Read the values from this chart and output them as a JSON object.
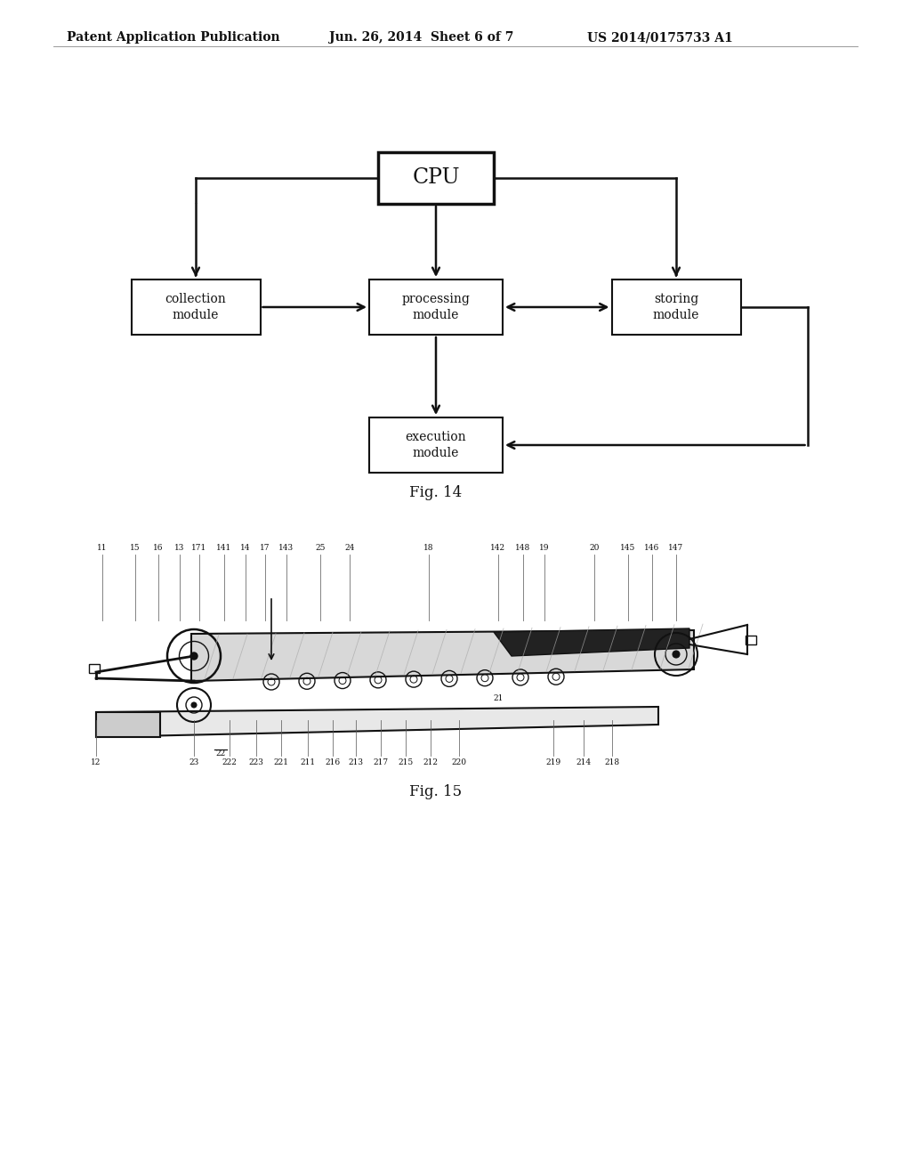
{
  "bg_color": "#ffffff",
  "header_left": "Patent Application Publication",
  "header_mid": "Jun. 26, 2014  Sheet 6 of 7",
  "header_right": "US 2014/0175733 A1",
  "fig14_caption": "Fig. 14",
  "fig15_caption": "Fig. 15",
  "cpu_label": "CPU",
  "collection_label": "collection\nmodule",
  "processing_label": "processing\nmodule",
  "storing_label": "storing\nmodule",
  "execution_label": "execution\nmodule",
  "top_labels": [
    [
      "11",
      115,
      700
    ],
    [
      "15",
      152,
      700
    ],
    [
      "16",
      178,
      700
    ],
    [
      "13",
      202,
      700
    ],
    [
      "171",
      224,
      700
    ],
    [
      "141",
      252,
      700
    ],
    [
      "14",
      276,
      700
    ],
    [
      "17",
      298,
      700
    ],
    [
      "143",
      322,
      700
    ],
    [
      "25",
      360,
      700
    ],
    [
      "24",
      393,
      700
    ],
    [
      "18",
      482,
      700
    ],
    [
      "142",
      560,
      700
    ],
    [
      "148",
      588,
      700
    ],
    [
      "19",
      612,
      700
    ],
    [
      "20",
      668,
      700
    ],
    [
      "145",
      706,
      700
    ],
    [
      "146",
      733,
      700
    ],
    [
      "147",
      760,
      700
    ]
  ],
  "bot_labels": [
    [
      "12",
      108,
      468
    ],
    [
      "23",
      218,
      468
    ],
    [
      "222",
      258,
      468
    ],
    [
      "223",
      288,
      468
    ],
    [
      "221",
      316,
      468
    ],
    [
      "211",
      346,
      468
    ],
    [
      "216",
      374,
      468
    ],
    [
      "213",
      400,
      468
    ],
    [
      "217",
      428,
      468
    ],
    [
      "215",
      456,
      468
    ],
    [
      "212",
      484,
      468
    ],
    [
      "220",
      516,
      468
    ],
    [
      "219",
      622,
      468
    ],
    [
      "214",
      656,
      468
    ],
    [
      "218",
      688,
      468
    ]
  ],
  "label_22": [
    248,
    478
  ],
  "label_21": [
    560,
    540
  ],
  "line_color": "#111111",
  "leader_color": "#555555"
}
